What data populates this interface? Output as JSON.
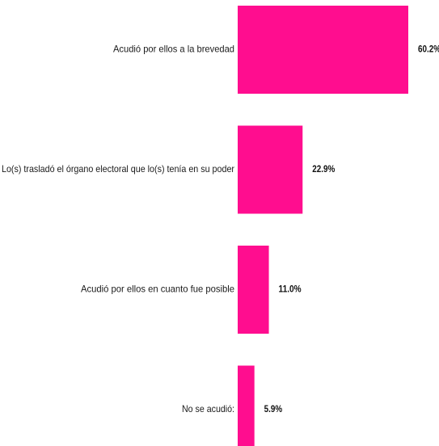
{
  "chart_data": {
    "type": "bar",
    "orientation": "horizontal",
    "categories": [
      "Acudió por ellos a la brevedad",
      "Lo(s) trasladó el órgano electoral que lo(s) tenía en su poder",
      "Acudió por ellos en cuanto fue posible",
      "No se acudió:"
    ],
    "values": [
      60.2,
      22.9,
      11.0,
      5.9
    ],
    "value_labels": [
      "60.2%",
      "22.9%",
      "11.0%",
      "5.9%"
    ],
    "xlim": [
      0,
      60.2
    ],
    "grid": false,
    "legend": "none",
    "bar_color": "#ff0d8f"
  }
}
